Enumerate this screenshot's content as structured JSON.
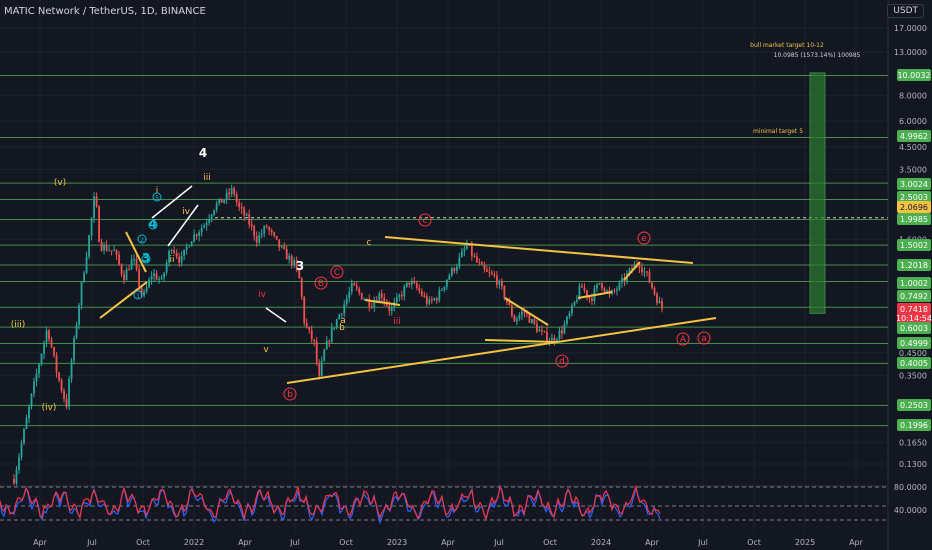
{
  "header": {
    "symbol": "MATIC Network / TetherUS, 1D, BINANCE",
    "currency": "USDT"
  },
  "chart_data": {
    "type": "candlestick",
    "scale": "log",
    "ylim": [
      0.1,
      20
    ],
    "y_ticks": [
      "17.0000",
      "13.0000",
      "8.0000",
      "6.0000",
      "4.5000",
      "3.5000",
      "1.6000",
      "0.4500",
      "0.3500",
      "0.1650",
      "0.1300"
    ],
    "x_tick_labels": [
      "Apr",
      "Jul",
      "Oct",
      "2022",
      "Apr",
      "Jul",
      "Oct",
      "2023",
      "Apr",
      "Jul",
      "Oct",
      "2024",
      "Apr",
      "Jul",
      "Oct",
      "2025",
      "Apr"
    ],
    "level_badges": [
      {
        "value": "10.0032",
        "color": "#4caf50"
      },
      {
        "value": "4.9962",
        "color": "#4caf50"
      },
      {
        "value": "3.0024",
        "color": "#4caf50"
      },
      {
        "value": "2.5003",
        "color": "#4caf50"
      },
      {
        "value": "2.0696",
        "color": "#f5c242"
      },
      {
        "value": "1.9985",
        "color": "#4caf50"
      },
      {
        "value": "1.5002",
        "color": "#4caf50"
      },
      {
        "value": "1.2018",
        "color": "#4caf50"
      },
      {
        "value": "1.0002",
        "color": "#4caf50"
      },
      {
        "value": "0.7492",
        "color": "#4caf50"
      },
      {
        "value": "0.7418",
        "color": "#f23645"
      },
      {
        "value": "10:14:54",
        "color": "#f23645"
      },
      {
        "value": "0.6003",
        "color": "#4caf50"
      },
      {
        "value": "0.4999",
        "color": "#4caf50"
      },
      {
        "value": "0.4005",
        "color": "#4caf50"
      },
      {
        "value": "0.2503",
        "color": "#4caf50"
      },
      {
        "value": "0.1996",
        "color": "#4caf50"
      }
    ],
    "price_path": [
      [
        0,
        0.11
      ],
      [
        4,
        0.3
      ],
      [
        7,
        0.6
      ],
      [
        9,
        0.36
      ],
      [
        11,
        0.25
      ],
      [
        12,
        0.4
      ],
      [
        14,
        0.9
      ],
      [
        16,
        1.8
      ],
      [
        17,
        2.7
      ],
      [
        18,
        1.5
      ],
      [
        21,
        1.4
      ],
      [
        23,
        1.05
      ],
      [
        25,
        1.3
      ],
      [
        27,
        0.82
      ],
      [
        29,
        1.1
      ],
      [
        31,
        1.0
      ],
      [
        33,
        1.5
      ],
      [
        35,
        1.25
      ],
      [
        37,
        1.6
      ],
      [
        40,
        1.9
      ],
      [
        42,
        2.3
      ],
      [
        44,
        2.5
      ],
      [
        46,
        2.8
      ],
      [
        47,
        2.3
      ],
      [
        49,
        2.0
      ],
      [
        51,
        1.6
      ],
      [
        53,
        1.85
      ],
      [
        55,
        1.55
      ],
      [
        57,
        1.35
      ],
      [
        59,
        1.2
      ],
      [
        60,
        1.0
      ],
      [
        61,
        0.62
      ],
      [
        63,
        0.5
      ],
      [
        64,
        0.33
      ],
      [
        65,
        0.45
      ],
      [
        67,
        0.6
      ],
      [
        69,
        0.75
      ],
      [
        71,
        0.95
      ],
      [
        73,
        0.85
      ],
      [
        75,
        0.78
      ],
      [
        77,
        0.88
      ],
      [
        79,
        0.72
      ],
      [
        81,
        0.85
      ],
      [
        83,
        1.0
      ],
      [
        85,
        0.9
      ],
      [
        87,
        0.78
      ],
      [
        89,
        0.85
      ],
      [
        91,
        1.05
      ],
      [
        93,
        1.22
      ],
      [
        95,
        1.5
      ],
      [
        97,
        1.25
      ],
      [
        99,
        1.1
      ],
      [
        101,
        1.05
      ],
      [
        103,
        0.85
      ],
      [
        105,
        0.65
      ],
      [
        107,
        0.72
      ],
      [
        109,
        0.62
      ],
      [
        111,
        0.55
      ],
      [
        113,
        0.52
      ],
      [
        115,
        0.58
      ],
      [
        117,
        0.72
      ],
      [
        119,
        0.95
      ],
      [
        121,
        0.82
      ],
      [
        123,
        1.0
      ],
      [
        125,
        0.85
      ],
      [
        127,
        0.95
      ],
      [
        129,
        1.1
      ],
      [
        131,
        1.25
      ],
      [
        133,
        1.05
      ],
      [
        135,
        0.82
      ],
      [
        136,
        0.74
      ]
    ],
    "annotations": [
      {
        "text": "(iii)",
        "color": "#f5c242"
      },
      {
        "text": "(iv)",
        "color": "#f5c242"
      },
      {
        "text": "(v)",
        "color": "#f5c242"
      },
      {
        "text": "i",
        "color": "#f5c242"
      },
      {
        "text": "ii",
        "color": "#f5c242"
      },
      {
        "text": "iii",
        "color": "#f5c242"
      },
      {
        "text": "iv",
        "color": "#f5c242"
      },
      {
        "text": "v",
        "color": "#f5c242"
      },
      {
        "text": "3",
        "color": "#ffffff"
      },
      {
        "text": "4",
        "color": "#ffffff"
      },
      {
        "text": "a",
        "color": "#f23645"
      },
      {
        "text": "b",
        "color": "#f23645"
      },
      {
        "text": "c",
        "color": "#f23645"
      },
      {
        "text": "d",
        "color": "#f23645"
      },
      {
        "text": "e",
        "color": "#f23645"
      },
      {
        "text": "A",
        "color": "#f23645"
      },
      {
        "text": "B",
        "color": "#f23645"
      },
      {
        "text": "C",
        "color": "#f23645"
      },
      {
        "text": "a",
        "color": "#f5c242"
      },
      {
        "text": "b",
        "color": "#f5c242"
      },
      {
        "text": "c",
        "color": "#f5c242"
      },
      {
        "text": "iii",
        "color": "#f23645"
      },
      {
        "text": "iv",
        "color": "#f23645"
      },
      {
        "text": "1",
        "color": "#00bcd4"
      },
      {
        "text": "2",
        "color": "#00bcd4"
      },
      {
        "text": "3",
        "color": "#00bcd4"
      },
      {
        "text": "4",
        "color": "#00bcd4"
      },
      {
        "text": "5",
        "color": "#00bcd4"
      }
    ],
    "notes": {
      "bull_target": "bull market target 10-12",
      "measure": "10.0985 (1573.14%) 100985",
      "minimal_target": "minimal target 5"
    },
    "rsi": {
      "levels": [
        "80.0000",
        "40.0000"
      ]
    }
  }
}
